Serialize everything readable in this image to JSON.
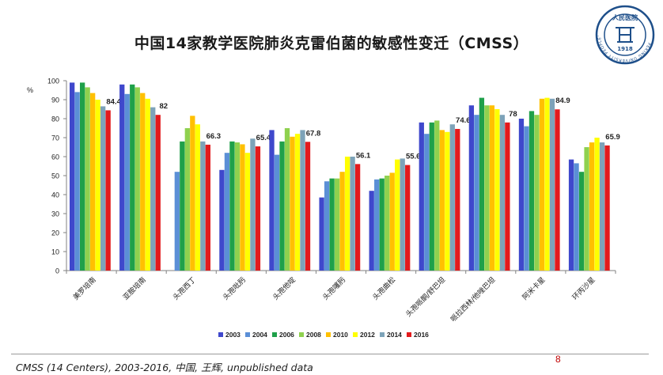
{
  "slide": {
    "title": "中国14家教学医院肺炎克雷伯菌的敏感性变迁（CMSS）",
    "source": "CMSS (14 Centers), 2003-2016, 中国, 王辉, unpublished data",
    "page_number": "8"
  },
  "logo": {
    "text": "人民医院",
    "year": "1918",
    "ring_text": "PEKING UNIVERSITY PEOPLE'S HOSPITAL",
    "color": "#1e4f8a"
  },
  "chart_data": {
    "type": "bar",
    "title": "",
    "xlabel": "",
    "ylabel": "%",
    "ylim": [
      0,
      100
    ],
    "ytick_step": 10,
    "grid": false,
    "legend_position": "bottom",
    "categories": [
      "美罗培南",
      "亚胺培南",
      "头孢西丁",
      "头孢吡肟",
      "头孢他啶",
      "头孢噻肟",
      "头孢曲松",
      "头孢哌酮/舒巴坦",
      "哌拉西林/他唑巴坦",
      "阿米卡星",
      "环丙沙星"
    ],
    "series": [
      {
        "name": "2003",
        "color": "#3f48cc",
        "values": [
          99,
          98,
          null,
          53,
          74,
          38.5,
          42,
          78,
          87,
          80,
          58.5
        ]
      },
      {
        "name": "2004",
        "color": "#5b8fd6",
        "values": [
          94,
          93,
          52,
          62,
          61,
          47,
          48,
          72,
          82,
          76,
          56.5
        ]
      },
      {
        "name": "2006",
        "color": "#1fa04a",
        "values": [
          99,
          98,
          68,
          68,
          68,
          48.5,
          48.5,
          78,
          91,
          84,
          52
        ]
      },
      {
        "name": "2008",
        "color": "#8fd14f",
        "values": [
          96.5,
          96.5,
          75,
          67.5,
          75,
          48.5,
          50,
          79,
          87,
          82,
          65
        ]
      },
      {
        "name": "2010",
        "color": "#ffc000",
        "values": [
          93.5,
          93.5,
          81.5,
          66.5,
          70.5,
          52,
          51.5,
          74,
          87,
          90.5,
          67.5
        ]
      },
      {
        "name": "2012",
        "color": "#ffff00",
        "values": [
          90,
          90.5,
          77,
          62,
          72,
          60,
          58.5,
          73,
          85,
          91,
          70
        ]
      },
      {
        "name": "2014",
        "color": "#7da3b9",
        "values": [
          86.5,
          86,
          68,
          69.5,
          74,
          60,
          59,
          77,
          82,
          90.5,
          67.5
        ]
      },
      {
        "name": "2016",
        "color": "#e31a1c",
        "values": [
          84.4,
          82,
          66.3,
          65.4,
          67.8,
          56.1,
          55.6,
          74.6,
          78,
          84.9,
          65.9
        ]
      }
    ],
    "data_labels": [
      "84.4",
      "82",
      "66.3",
      "65.4",
      "67.8",
      "56.1",
      "55.6",
      "74.6",
      "78",
      "84.9",
      "65.9"
    ]
  }
}
